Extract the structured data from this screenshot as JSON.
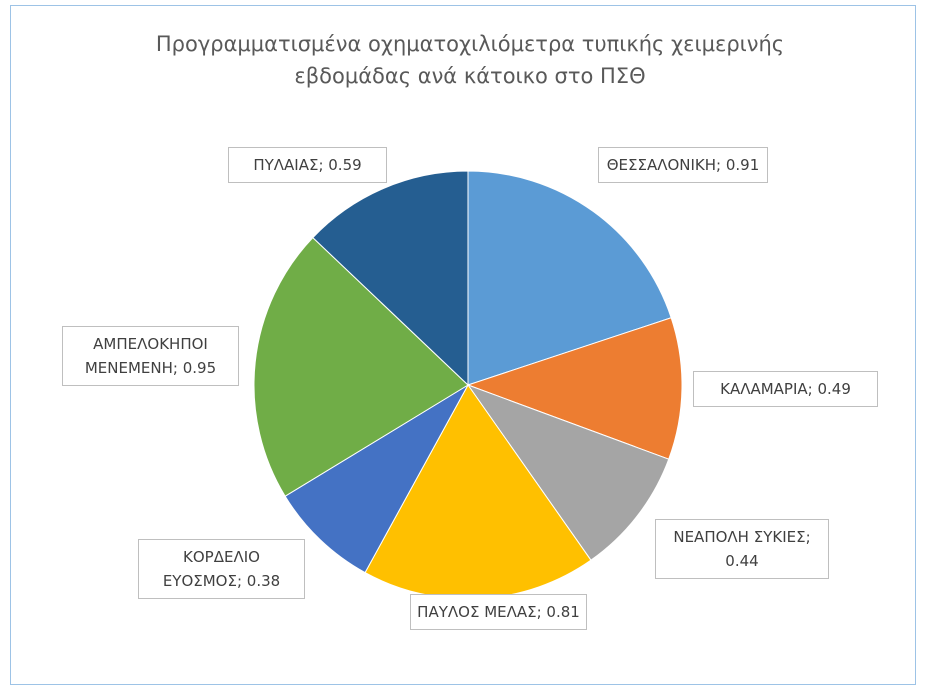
{
  "chart_data": {
    "type": "pie",
    "title": "Προγραμματισμένα οχηματοχιλιόμετρα τυπικής χειμερινής εβδομάδας ανά κάτοικο στο ΠΣΘ",
    "values": [
      0.91,
      0.49,
      0.44,
      0.81,
      0.38,
      0.95,
      0.59
    ],
    "value_labels": [
      "ΘΕΣΣΑΛΟΝΙΚΗ; 0.91",
      "ΚΑΛΑΜΑΡΙΑ; 0.49",
      "ΝΕΑΠΟΛΗ ΣΥΚΙΕΣ; 0.44",
      "ΠΑΥΛΟΣ ΜΕΛΑΣ; 0.81",
      "ΚΟΡΔΕΛΙΟ ΕΥΟΣΜΟΣ; 0.38",
      "ΑΜΠΕΛΟΚΗΠΟΙ ΜΕΝΕΜΕΝΗ; 0.95",
      "ΠΥΛΑΙΑΣ; 0.59"
    ],
    "colors": [
      "#5b9bd5",
      "#ed7d31",
      "#a5a5a5",
      "#ffc000",
      "#4472c4",
      "#70ad47",
      "#255e91"
    ]
  }
}
